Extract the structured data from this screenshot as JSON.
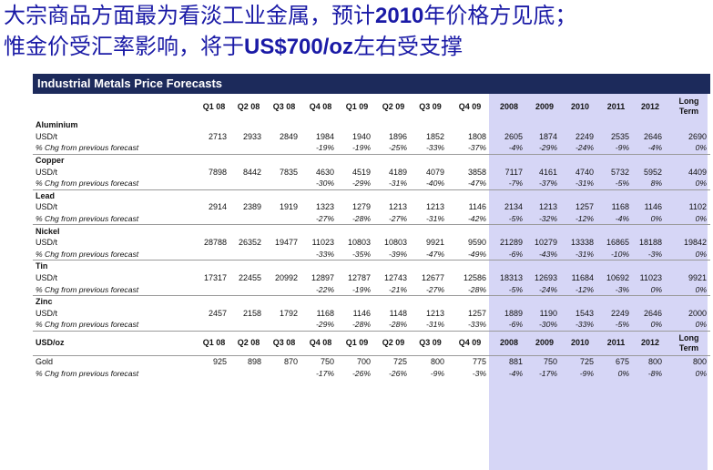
{
  "title_line1_a": "大宗商品方面最为看淡工业金属，预计",
  "title_line1_b": "2010",
  "title_line1_c": "年价格方见底；",
  "title_line2_a": "惟金价受汇率影响，将于",
  "title_line2_b": "US$700/oz",
  "title_line2_c": "左右受支撑",
  "table_title": "Industrial Metals Price Forecasts",
  "headers": [
    "Q1 08",
    "Q2 08",
    "Q3 08",
    "Q4 08",
    "Q1 09",
    "Q2 09",
    "Q3 09",
    "Q4 09",
    "2008",
    "2009",
    "2010",
    "2011",
    "2012",
    "Long Term"
  ],
  "unit_usdt": "USD/t",
  "unit_usdoz": "USD/oz",
  "pct_label": "% Chg from previous forecast",
  "metals": [
    {
      "name": "Aluminium",
      "values": [
        "2713",
        "2933",
        "2849",
        "1984",
        "1940",
        "1896",
        "1852",
        "1808",
        "2605",
        "1874",
        "2249",
        "2535",
        "2646",
        "2690"
      ],
      "pct": [
        "",
        "",
        "",
        "-19%",
        "-19%",
        "-25%",
        "-33%",
        "-37%",
        "-4%",
        "-29%",
        "-24%",
        "-9%",
        "-4%",
        "0%"
      ]
    },
    {
      "name": "Copper",
      "values": [
        "7898",
        "8442",
        "7835",
        "4630",
        "4519",
        "4189",
        "4079",
        "3858",
        "7117",
        "4161",
        "4740",
        "5732",
        "5952",
        "4409"
      ],
      "pct": [
        "",
        "",
        "",
        "-30%",
        "-29%",
        "-31%",
        "-40%",
        "-47%",
        "-7%",
        "-37%",
        "-31%",
        "-5%",
        "8%",
        "0%"
      ]
    },
    {
      "name": "Lead",
      "values": [
        "2914",
        "2389",
        "1919",
        "1323",
        "1279",
        "1213",
        "1213",
        "1146",
        "2134",
        "1213",
        "1257",
        "1168",
        "1146",
        "1102"
      ],
      "pct": [
        "",
        "",
        "",
        "-27%",
        "-28%",
        "-27%",
        "-31%",
        "-42%",
        "-5%",
        "-32%",
        "-12%",
        "-4%",
        "0%",
        "0%"
      ]
    },
    {
      "name": "Nickel",
      "values": [
        "28788",
        "26352",
        "19477",
        "11023",
        "10803",
        "10803",
        "9921",
        "9590",
        "21289",
        "10279",
        "13338",
        "16865",
        "18188",
        "19842"
      ],
      "pct": [
        "",
        "",
        "",
        "-33%",
        "-35%",
        "-39%",
        "-47%",
        "-49%",
        "-6%",
        "-43%",
        "-31%",
        "-10%",
        "-3%",
        "0%"
      ]
    },
    {
      "name": "Tin",
      "values": [
        "17317",
        "22455",
        "20992",
        "12897",
        "12787",
        "12743",
        "12677",
        "12586",
        "18313",
        "12693",
        "11684",
        "10692",
        "11023",
        "9921"
      ],
      "pct": [
        "",
        "",
        "",
        "-22%",
        "-19%",
        "-21%",
        "-27%",
        "-28%",
        "-5%",
        "-24%",
        "-12%",
        "-3%",
        "0%",
        "0%"
      ]
    },
    {
      "name": "Zinc",
      "values": [
        "2457",
        "2158",
        "1792",
        "1168",
        "1146",
        "1148",
        "1213",
        "1257",
        "1889",
        "1190",
        "1543",
        "2249",
        "2646",
        "2000"
      ],
      "pct": [
        "",
        "",
        "",
        "-29%",
        "-28%",
        "-28%",
        "-31%",
        "-33%",
        "-6%",
        "-30%",
        "-33%",
        "-5%",
        "0%",
        "0%"
      ]
    }
  ],
  "gold": {
    "name": "Gold",
    "values": [
      "925",
      "898",
      "870",
      "750",
      "700",
      "725",
      "800",
      "775",
      "881",
      "750",
      "725",
      "675",
      "800",
      "800"
    ],
    "pct": [
      "",
      "",
      "",
      "-17%",
      "-26%",
      "-26%",
      "-9%",
      "-3%",
      "-4%",
      "-17%",
      "-9%",
      "0%",
      "-8%",
      "0%"
    ]
  }
}
